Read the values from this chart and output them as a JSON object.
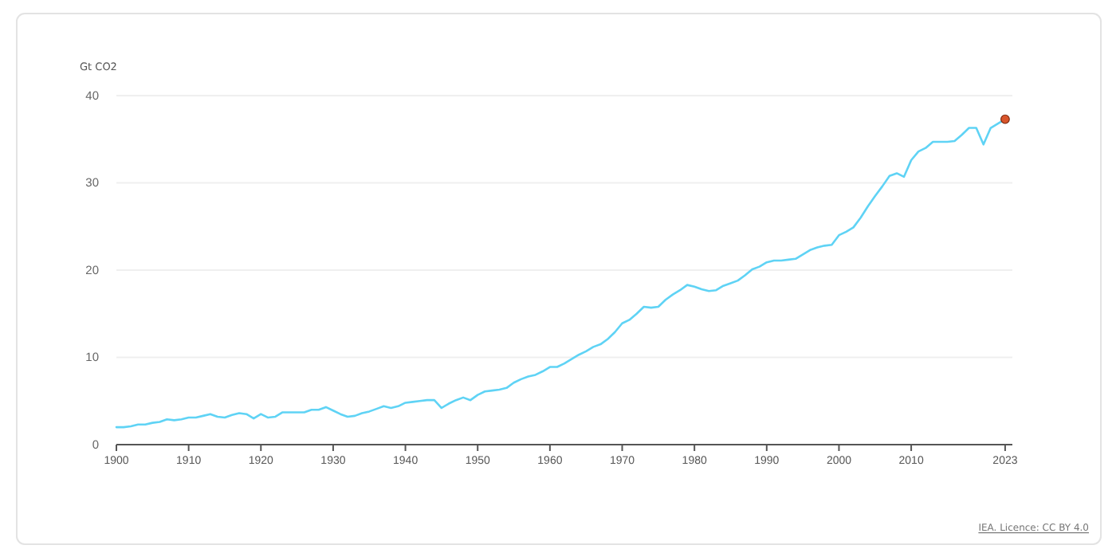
{
  "chart_data": {
    "type": "line",
    "ylabel": "Gt CO2",
    "annotations": [
      "IEA. Licence: CC BY 4.0"
    ],
    "xlim": [
      1900,
      2024
    ],
    "xticks": [
      1900,
      1910,
      1920,
      1930,
      1940,
      1950,
      1960,
      1970,
      1980,
      1990,
      2000,
      2010,
      2023
    ],
    "ylim": [
      0,
      40
    ],
    "yticks": [
      0,
      10,
      20,
      30,
      40
    ],
    "grid": "y",
    "x": [
      1900,
      1901,
      1902,
      1903,
      1904,
      1905,
      1906,
      1907,
      1908,
      1909,
      1910,
      1911,
      1912,
      1913,
      1914,
      1915,
      1916,
      1917,
      1918,
      1919,
      1920,
      1921,
      1922,
      1923,
      1924,
      1925,
      1926,
      1927,
      1928,
      1929,
      1930,
      1931,
      1932,
      1933,
      1934,
      1935,
      1936,
      1937,
      1938,
      1939,
      1940,
      1941,
      1942,
      1943,
      1944,
      1945,
      1946,
      1947,
      1948,
      1949,
      1950,
      1951,
      1952,
      1953,
      1954,
      1955,
      1956,
      1957,
      1958,
      1959,
      1960,
      1961,
      1962,
      1963,
      1964,
      1965,
      1966,
      1967,
      1968,
      1969,
      1970,
      1971,
      1972,
      1973,
      1974,
      1975,
      1976,
      1977,
      1978,
      1979,
      1980,
      1981,
      1982,
      1983,
      1984,
      1985,
      1986,
      1987,
      1988,
      1989,
      1990,
      1991,
      1992,
      1993,
      1994,
      1995,
      1996,
      1997,
      1998,
      1999,
      2000,
      2001,
      2002,
      2003,
      2004,
      2005,
      2006,
      2007,
      2008,
      2009,
      2010,
      2011,
      2012,
      2013,
      2014,
      2015,
      2016,
      2017,
      2018,
      2019,
      2020,
      2021,
      2022,
      2023
    ],
    "series": [
      {
        "color": "#5fd3f5",
        "marker": "none",
        "values": [
          2.0,
          2.0,
          2.1,
          2.3,
          2.3,
          2.5,
          2.6,
          2.9,
          2.8,
          2.9,
          3.1,
          3.1,
          3.3,
          3.5,
          3.2,
          3.1,
          3.4,
          3.6,
          3.5,
          3.0,
          3.5,
          3.1,
          3.2,
          3.7,
          3.7,
          3.7,
          3.7,
          4.0,
          4.0,
          4.3,
          3.9,
          3.5,
          3.2,
          3.3,
          3.6,
          3.8,
          4.1,
          4.4,
          4.2,
          4.4,
          4.8,
          4.9,
          5.0,
          5.1,
          5.1,
          4.2,
          4.7,
          5.1,
          5.4,
          5.1,
          5.7,
          6.1,
          6.2,
          6.3,
          6.5,
          7.1,
          7.5,
          7.8,
          8.0,
          8.4,
          8.9,
          8.9,
          9.3,
          9.8,
          10.3,
          10.7,
          11.2,
          11.5,
          12.1,
          12.9,
          13.9,
          14.3,
          15.0,
          15.8,
          15.7,
          15.8,
          16.6,
          17.2,
          17.7,
          18.3,
          18.1,
          17.8,
          17.6,
          17.7,
          18.2,
          18.5,
          18.8,
          19.4,
          20.1,
          20.4,
          20.9,
          21.1,
          21.1,
          21.2,
          21.3,
          21.8,
          22.3,
          22.6,
          22.8,
          22.9,
          24.0,
          24.4,
          24.9,
          26.0,
          27.3,
          28.5,
          29.6,
          30.8,
          31.1,
          30.7,
          32.6,
          33.6,
          34.0,
          34.7,
          34.7,
          34.7,
          34.8,
          35.5,
          36.3,
          36.3,
          34.4,
          36.3,
          36.8,
          37.3
        ]
      },
      {
        "type": "scatter",
        "color": "#d9552b",
        "marker": "circle",
        "x": [
          2023
        ],
        "values": [
          37.3
        ]
      }
    ]
  }
}
